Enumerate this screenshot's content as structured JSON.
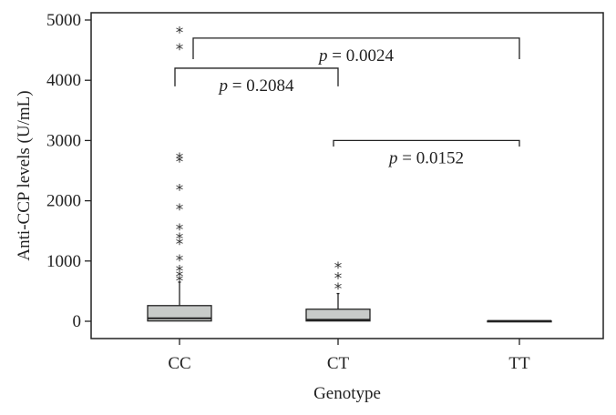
{
  "chart_data": {
    "type": "box",
    "xlabel": "Genotype",
    "ylabel": "Anti-CCP levels (U/mL)",
    "ylim": [
      -300,
      5000
    ],
    "yticks": [
      0,
      1000,
      2000,
      3000,
      4000,
      5000
    ],
    "categories": [
      "CC",
      "CT",
      "TT"
    ],
    "boxes": [
      {
        "category": "CC",
        "min": 0,
        "q1": 5,
        "median": 50,
        "q3": 260,
        "max": 650,
        "outliers": [
          720,
          790,
          880,
          1060,
          1330,
          1420,
          1570,
          1900,
          2230,
          2700,
          2750,
          4560,
          4840
        ]
      },
      {
        "category": "CT",
        "min": 0,
        "q1": 5,
        "median": 25,
        "q3": 200,
        "max": 460,
        "outliers": [
          590,
          760,
          940
        ]
      },
      {
        "category": "TT",
        "min": 5,
        "q1": 5,
        "median": 5,
        "q3": 5,
        "max": 5,
        "outliers": []
      }
    ],
    "comparisons": [
      {
        "from": "CC",
        "to": "TT",
        "label": "p = 0.0024",
        "y": 4350,
        "top": 4700
      },
      {
        "from": "CC",
        "to": "CT",
        "label": "p = 0.2084",
        "y": 3900,
        "top": 4200
      },
      {
        "from": "CT",
        "to": "TT",
        "label": "p = 0.0152",
        "y": 2900,
        "top": 3000
      }
    ],
    "box_fill": "#c8cbc9",
    "line_color": "#222222",
    "grid": false
  }
}
